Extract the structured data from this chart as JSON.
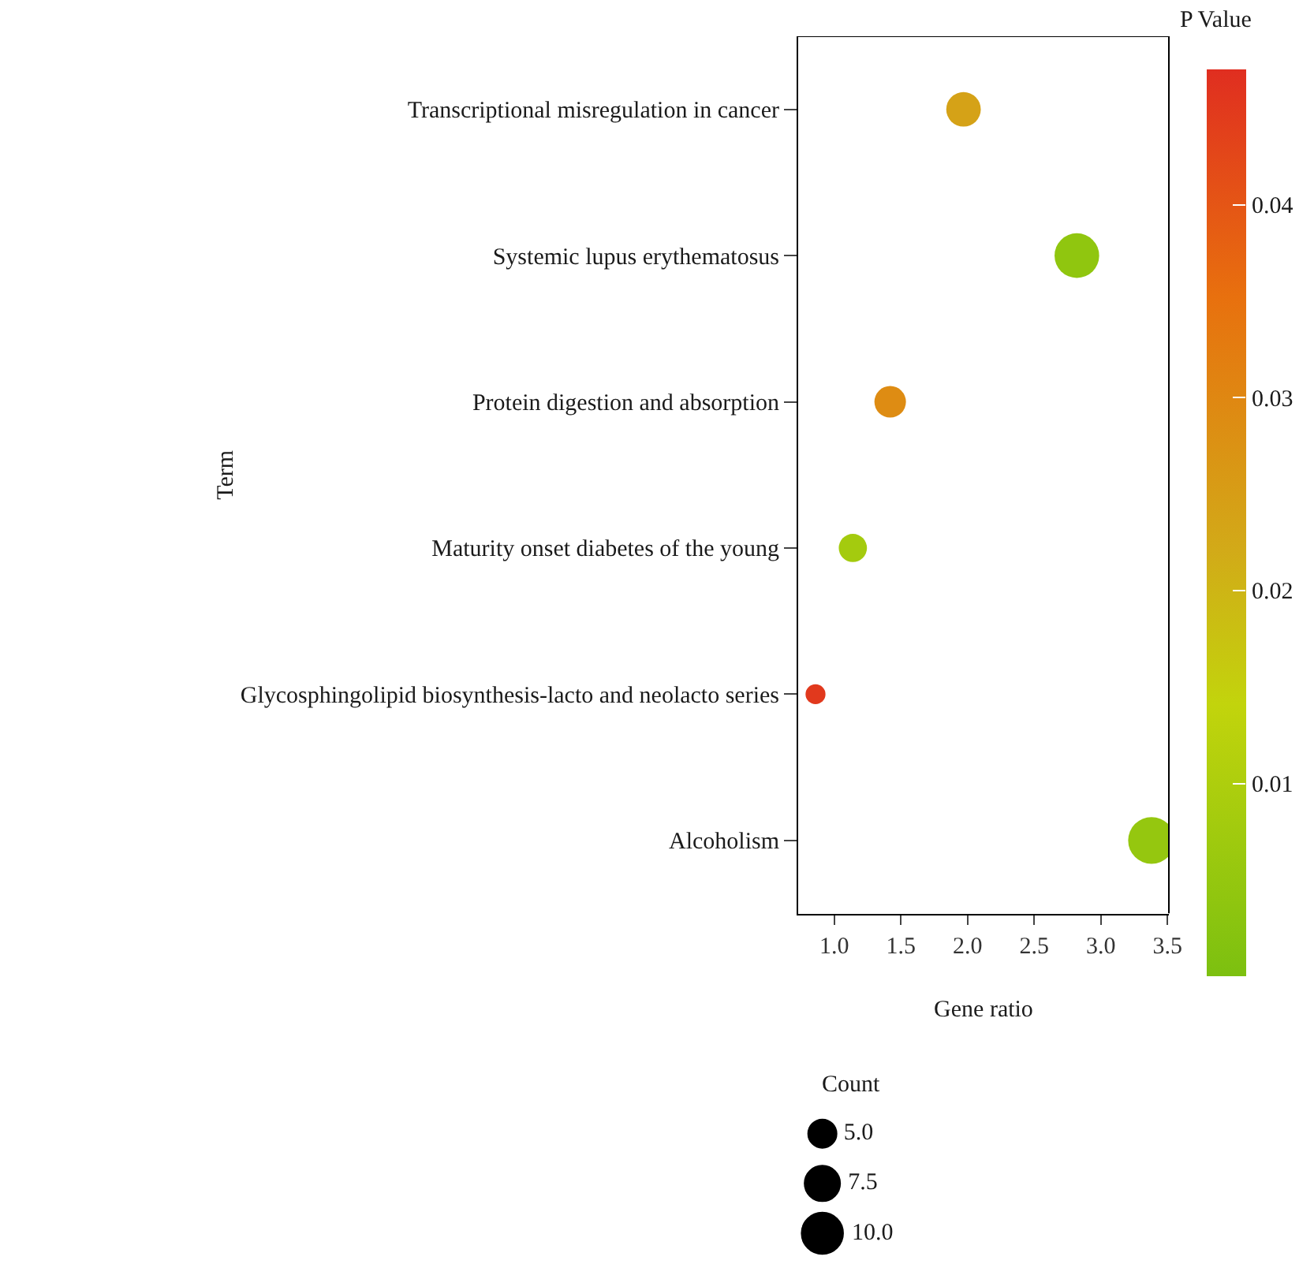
{
  "chart_data": {
    "type": "bubble",
    "orientation": "horizontal",
    "xlabel": "Gene ratio",
    "ylabel": "Term",
    "clabel": "P Value",
    "legend_title": "Count",
    "categories": [
      "Transcriptional misregulation in cancer",
      "Systemic lupus erythematosus",
      "Protein digestion and absorption",
      "Maturity onset diabetes of the young",
      "Glycosphingolipid biosynthesis-lacto and neolacto series",
      "Alcoholism"
    ],
    "values": [
      1.97,
      2.82,
      1.42,
      1.14,
      0.86,
      3.38
    ],
    "sizes": [
      6,
      10,
      5,
      4,
      2,
      11
    ],
    "cvalues": [
      0.024,
      0.004,
      0.029,
      0.008,
      0.045,
      0.005
    ],
    "size_legend": [
      {
        "value": 5,
        "label": "5.0"
      },
      {
        "value": 7.5,
        "label": "7.5"
      },
      {
        "value": 10,
        "label": "10.0"
      }
    ],
    "xlim": [
      0.73,
      3.51
    ],
    "xticks": [
      {
        "value": 1,
        "label": "1.0"
      },
      {
        "value": 1.5,
        "label": "1.5"
      },
      {
        "value": 2,
        "label": "2.0"
      },
      {
        "value": 2.5,
        "label": "2.5"
      },
      {
        "value": 3,
        "label": "3.0"
      },
      {
        "value": 3.5,
        "label": "3.5"
      }
    ],
    "clim": [
      0,
      0.047
    ],
    "cticks": [
      0.01,
      0.02,
      0.03,
      0.04
    ],
    "grid": false
  }
}
